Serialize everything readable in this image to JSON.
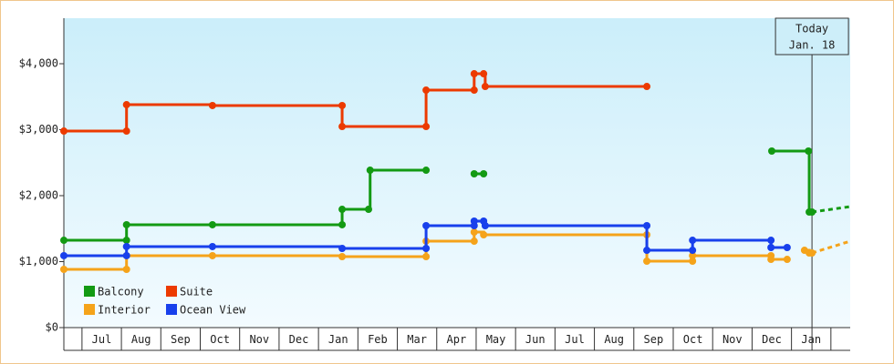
{
  "chart_data": {
    "type": "step",
    "ylim": [
      0,
      4690
    ],
    "yticks": [
      {
        "value": 0,
        "label": "$0"
      },
      {
        "value": 1000,
        "label": "$1,000"
      },
      {
        "value": 2000,
        "label": "$2,000"
      },
      {
        "value": 3000,
        "label": "$3,000"
      },
      {
        "value": 4000,
        "label": "$4,000"
      }
    ],
    "xlim": [
      -0.46,
      19.49
    ],
    "categories": [
      null,
      "Jul",
      "Aug",
      "Sep",
      "Oct",
      "Nov",
      "Dec",
      "Jan",
      "Feb",
      "Mar",
      "Apr",
      "May",
      "Jun",
      "Jul",
      "Aug",
      "Sep",
      "Oct",
      "Nov",
      "Dec",
      "Jan",
      null
    ],
    "legend": "lower left",
    "today": {
      "label": "Today",
      "date": "Jan. 18",
      "x": 18.52
    },
    "series": [
      {
        "name": "Balcony",
        "color": "#139a13",
        "x": [
          -0.46,
          1.13,
          1.13,
          3.31,
          6.6,
          6.6,
          7.27,
          7.31,
          8.73,
          9.3,
          9.95,
          10.19,
          14.0,
          17.5,
          18.43,
          18.45,
          18.52
        ],
        "values": [
          1324,
          1324,
          1559,
          1559,
          1559,
          1793,
          1793,
          2386,
          2386,
          null,
          2331,
          2331,
          null,
          2676,
          2676,
          1752,
          1752
        ],
        "forecast": {
          "x": [
            18.52,
            19.49
          ],
          "values": [
            1752,
            1834
          ]
        }
      },
      {
        "name": "Suite",
        "color": "#ec3a00",
        "x": [
          -0.46,
          1.13,
          1.13,
          3.31,
          6.6,
          6.6,
          8.73,
          8.73,
          9.95,
          9.95,
          10.19,
          10.23,
          14.33
        ],
        "values": [
          2979,
          2979,
          3379,
          3366,
          3366,
          3048,
          3048,
          3600,
          3600,
          3848,
          3848,
          3655,
          3655
        ]
      },
      {
        "name": "Interior",
        "color": "#f5a31a",
        "x": [
          -0.46,
          1.13,
          1.13,
          3.31,
          6.6,
          8.73,
          8.73,
          9.95,
          9.95,
          10.19,
          14.33,
          14.33,
          15.49,
          15.49,
          17.48,
          17.48,
          17.89,
          18.1,
          18.33,
          18.45,
          18.52
        ],
        "values": [
          883,
          883,
          1090,
          1090,
          1076,
          1076,
          1310,
          1310,
          1448,
          1407,
          1407,
          1007,
          1007,
          1090,
          1090,
          1034,
          1034,
          null,
          1172,
          1131,
          1131
        ],
        "forecast": {
          "x": [
            18.52,
            19.49
          ],
          "values": [
            1131,
            1310
          ]
        }
      },
      {
        "name": "Ocean View",
        "color": "#1840ec",
        "x": [
          -0.46,
          1.13,
          1.13,
          3.31,
          6.6,
          8.73,
          8.73,
          9.95,
          9.95,
          10.19,
          10.23,
          14.33,
          14.33,
          15.49,
          15.49,
          17.48,
          17.48,
          17.89
        ],
        "values": [
          1090,
          1090,
          1228,
          1228,
          1200,
          1200,
          1545,
          1545,
          1614,
          1614,
          1545,
          1545,
          1172,
          1172,
          1324,
          1324,
          1214,
          1214
        ]
      }
    ]
  }
}
